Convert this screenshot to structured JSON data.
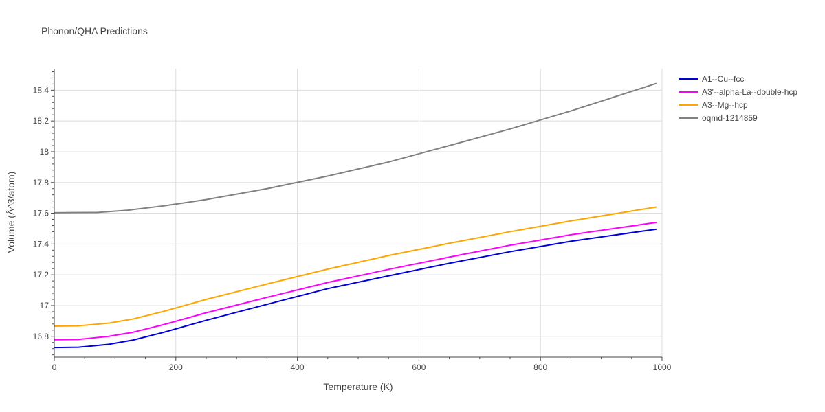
{
  "chart_data": {
    "type": "line",
    "title": "Phonon/QHA Predictions",
    "xlabel": "Temperature (K)",
    "ylabel": "Volume (Å^3/atom)",
    "xlim": [
      0,
      1000
    ],
    "ylim": [
      16.665,
      18.54
    ],
    "x_ticks": [
      0,
      200,
      400,
      600,
      800,
      1000
    ],
    "x_tick_labels": [
      "0",
      "200",
      "400",
      "600",
      "800",
      "1000"
    ],
    "y_ticks": [
      16.8,
      17.0,
      17.2,
      17.4,
      17.6,
      17.8,
      18.0,
      18.2,
      18.4
    ],
    "y_tick_labels": [
      "16.8",
      "17",
      "17.2",
      "17.4",
      "17.6",
      "17.8",
      "18",
      "18.2",
      "18.4"
    ],
    "grid": true,
    "legend_position": "top-right-outside",
    "series": [
      {
        "name": "A1--Cu--fcc",
        "color": "#0000dd",
        "x": [
          0,
          40,
          90,
          130,
          180,
          250,
          350,
          450,
          550,
          650,
          750,
          850,
          990
        ],
        "y": [
          16.727,
          16.729,
          16.748,
          16.776,
          16.826,
          16.904,
          17.008,
          17.11,
          17.193,
          17.275,
          17.35,
          17.418,
          17.496
        ]
      },
      {
        "name": "A3'--alpha-La--double-hcp",
        "color": "#ff00ff",
        "x": [
          0,
          40,
          90,
          130,
          180,
          250,
          350,
          450,
          550,
          650,
          750,
          850,
          990
        ],
        "y": [
          16.778,
          16.78,
          16.8,
          16.827,
          16.876,
          16.953,
          17.053,
          17.15,
          17.235,
          17.315,
          17.392,
          17.46,
          17.54
        ]
      },
      {
        "name": "A3--Mg--hcp",
        "color": "#ffa500",
        "x": [
          0,
          40,
          90,
          130,
          180,
          250,
          350,
          450,
          550,
          650,
          750,
          850,
          990
        ],
        "y": [
          16.866,
          16.868,
          16.886,
          16.913,
          16.962,
          17.04,
          17.14,
          17.237,
          17.325,
          17.405,
          17.48,
          17.55,
          17.64
        ]
      },
      {
        "name": "oqmd-1214859",
        "color": "#808080",
        "x": [
          0,
          30,
          70,
          120,
          180,
          250,
          350,
          450,
          550,
          650,
          750,
          850,
          990
        ],
        "y": [
          17.603,
          17.604,
          17.605,
          17.619,
          17.648,
          17.689,
          17.76,
          17.842,
          17.933,
          18.04,
          18.148,
          18.265,
          18.443
        ]
      }
    ]
  }
}
